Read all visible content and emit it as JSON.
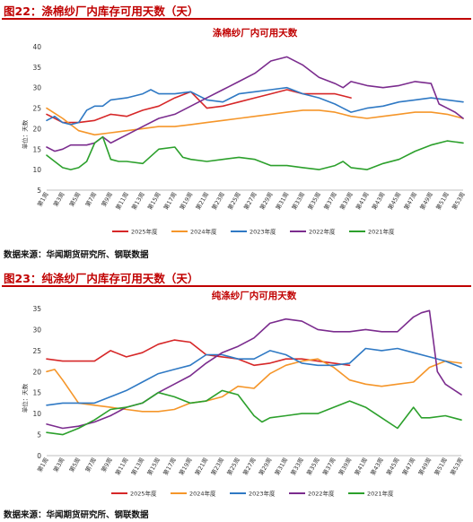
{
  "figures": [
    {
      "figure_label": "图22：涤棉纱厂内库存可用天数（天）",
      "source": "数据来源：华闻期货研究所、钢联数据"
    },
    {
      "figure_label": "图23：纯涤纱厂内库存可用天数（天）",
      "source": "数据来源：华闻期货研究所、钢联数据"
    }
  ],
  "colors": {
    "2025年度": "#d62728",
    "2024年度": "#f5962a",
    "2023年度": "#2f79c4",
    "2022年度": "#7b2c8e",
    "2021年度": "#2ca02c"
  },
  "chart_data": [
    {
      "type": "line",
      "title": "涤棉纱厂内可用天数",
      "ylabel": "单位：天数",
      "ylim": [
        5,
        40
      ],
      "yticks": [
        5,
        10,
        15,
        20,
        25,
        30,
        35,
        40
      ],
      "xticks": [
        "第1周",
        "第3周",
        "第5周",
        "第7周",
        "第9周",
        "第11周",
        "第13周",
        "第15周",
        "第17周",
        "第19周",
        "第21周",
        "第23周",
        "第25周",
        "第27周",
        "第29周",
        "第31周",
        "第33周",
        "第35周",
        "第37周",
        "第39周",
        "第41周",
        "第43周",
        "第45周",
        "第47周",
        "第49周",
        "第51周",
        "第53周"
      ],
      "legend_position": "bottom",
      "series": [
        {
          "name": "2025年度",
          "x": [
            1,
            3,
            5,
            7,
            9,
            11,
            13,
            15,
            17,
            19,
            21,
            23,
            25,
            27,
            29,
            31,
            33,
            35,
            37,
            39
          ],
          "values": [
            23.5,
            21.5,
            21.5,
            22.0,
            23.5,
            23.0,
            24.5,
            25.5,
            27.5,
            29.0,
            25.0,
            25.5,
            26.5,
            27.5,
            28.5,
            29.5,
            28.5,
            28.5,
            28.5,
            27.5
          ]
        },
        {
          "name": "2024年度",
          "x": [
            1,
            3,
            5,
            7,
            9,
            11,
            13,
            15,
            17,
            19,
            21,
            23,
            25,
            27,
            29,
            31,
            33,
            35,
            37,
            39,
            41,
            43,
            45,
            47,
            49,
            51,
            53
          ],
          "values": [
            25.0,
            22.5,
            19.5,
            18.5,
            19.0,
            19.5,
            20.0,
            20.5,
            20.5,
            21.0,
            21.5,
            22.0,
            22.5,
            23.0,
            23.5,
            24.0,
            24.5,
            24.5,
            24.0,
            23.0,
            22.5,
            23.0,
            23.5,
            24.0,
            24.0,
            23.5,
            22.5
          ]
        },
        {
          "name": "2023年度",
          "x": [
            1,
            2,
            3,
            4,
            5,
            6,
            7,
            8,
            9,
            11,
            13,
            14,
            15,
            17,
            19,
            21,
            23,
            25,
            27,
            29,
            31,
            33,
            35,
            37,
            39,
            40,
            41,
            43,
            45,
            47,
            49,
            51,
            53
          ],
          "values": [
            22.0,
            23.0,
            21.5,
            21.0,
            21.5,
            24.5,
            25.5,
            25.5,
            27.0,
            27.5,
            28.5,
            29.5,
            28.5,
            28.5,
            29.0,
            27.0,
            26.5,
            28.5,
            29.0,
            29.5,
            30.0,
            28.5,
            27.5,
            26.0,
            24.0,
            24.5,
            25.0,
            25.5,
            26.5,
            27.0,
            27.5,
            27.0,
            26.5
          ]
        },
        {
          "name": "2022年度",
          "x": [
            1,
            2,
            3,
            4,
            5,
            6,
            7,
            8,
            9,
            11,
            13,
            15,
            17,
            19,
            21,
            23,
            25,
            27,
            29,
            31,
            33,
            35,
            37,
            38,
            39,
            41,
            43,
            45,
            47,
            49,
            50,
            51,
            52,
            53
          ],
          "values": [
            15.5,
            14.5,
            15.0,
            16.0,
            16.0,
            16.0,
            16.5,
            18.0,
            16.5,
            18.5,
            20.5,
            22.5,
            23.5,
            25.5,
            27.5,
            29.5,
            31.5,
            33.5,
            36.5,
            37.5,
            35.5,
            32.5,
            31.0,
            30.0,
            31.5,
            30.5,
            30.0,
            30.5,
            31.5,
            31.0,
            26.0,
            25.0,
            24.0,
            22.5
          ]
        },
        {
          "name": "2021年度",
          "x": [
            1,
            2,
            3,
            4,
            5,
            6,
            7,
            8,
            9,
            10,
            11,
            13,
            15,
            17,
            18,
            19,
            21,
            23,
            25,
            27,
            29,
            31,
            33,
            35,
            37,
            38,
            39,
            41,
            43,
            45,
            47,
            49,
            51,
            53
          ],
          "values": [
            13.5,
            12.0,
            10.5,
            10.0,
            10.5,
            12.0,
            16.5,
            18.0,
            12.5,
            12.0,
            12.0,
            11.5,
            15.0,
            15.5,
            13.0,
            12.5,
            12.0,
            12.5,
            13.0,
            12.5,
            11.0,
            11.0,
            10.5,
            10.0,
            11.0,
            12.0,
            10.5,
            10.0,
            11.5,
            12.5,
            14.5,
            16.0,
            17.0,
            16.5
          ]
        }
      ]
    },
    {
      "type": "line",
      "title": "纯涤纱厂内可用天数",
      "ylabel": "单位：天数",
      "ylim": [
        0,
        35
      ],
      "yticks": [
        0,
        5,
        10,
        15,
        20,
        25,
        30,
        35
      ],
      "xticks": [
        "第1周",
        "第3周",
        "第5周",
        "第7周",
        "第9周",
        "第11周",
        "第13周",
        "第15周",
        "第17周",
        "第19周",
        "第21周",
        "第23周",
        "第25周",
        "第27周",
        "第29周",
        "第31周",
        "第33周",
        "第35周",
        "第37周",
        "第39周",
        "第41周",
        "第43周",
        "第45周",
        "第47周",
        "第49周",
        "第51周",
        "第53周"
      ],
      "legend_position": "bottom",
      "series": [
        {
          "name": "2025年度",
          "x": [
            1,
            3,
            5,
            7,
            9,
            11,
            13,
            15,
            17,
            19,
            21,
            23,
            25,
            27,
            29,
            31,
            33,
            35,
            37,
            39
          ],
          "values": [
            23.0,
            22.5,
            22.5,
            22.5,
            25.0,
            23.5,
            24.5,
            26.5,
            27.5,
            27.0,
            24.0,
            23.5,
            23.0,
            21.5,
            22.0,
            23.0,
            23.0,
            22.5,
            22.0,
            21.5
          ]
        },
        {
          "name": "2024年度",
          "x": [
            1,
            2,
            3,
            5,
            7,
            9,
            11,
            13,
            15,
            17,
            19,
            21,
            23,
            25,
            27,
            29,
            31,
            33,
            35,
            37,
            39,
            41,
            43,
            45,
            47,
            49,
            51,
            53
          ],
          "values": [
            20.0,
            20.5,
            18.0,
            12.5,
            12.0,
            11.5,
            11.0,
            10.5,
            10.5,
            11.0,
            12.5,
            13.0,
            14.0,
            16.5,
            16.0,
            19.5,
            21.5,
            22.5,
            23.0,
            21.0,
            18.0,
            17.0,
            16.5,
            17.0,
            17.5,
            21.0,
            22.5,
            22.0
          ]
        },
        {
          "name": "2023年度",
          "x": [
            1,
            3,
            5,
            7,
            9,
            11,
            13,
            15,
            17,
            19,
            21,
            23,
            25,
            27,
            29,
            31,
            33,
            35,
            37,
            39,
            41,
            43,
            45,
            47,
            49,
            51,
            53
          ],
          "values": [
            12.0,
            12.5,
            12.5,
            12.5,
            14.0,
            15.5,
            17.5,
            19.5,
            20.5,
            21.5,
            24.0,
            24.0,
            23.0,
            23.0,
            25.0,
            24.0,
            22.0,
            21.5,
            21.5,
            22.0,
            25.5,
            25.0,
            25.5,
            24.5,
            23.5,
            22.5,
            21.0
          ]
        },
        {
          "name": "2022年度",
          "x": [
            1,
            3,
            5,
            7,
            9,
            11,
            13,
            15,
            17,
            19,
            21,
            23,
            25,
            27,
            29,
            31,
            33,
            35,
            37,
            39,
            41,
            43,
            45,
            47,
            48,
            49,
            50,
            51,
            53
          ],
          "values": [
            7.5,
            6.5,
            7.0,
            8.0,
            9.5,
            11.5,
            12.5,
            15.0,
            17.0,
            19.0,
            22.0,
            24.5,
            26.0,
            28.0,
            31.5,
            32.5,
            32.0,
            30.0,
            29.5,
            29.5,
            30.0,
            29.5,
            29.5,
            33.0,
            34.0,
            34.5,
            20.0,
            17.0,
            14.5
          ]
        },
        {
          "name": "2021年度",
          "x": [
            1,
            3,
            5,
            7,
            9,
            11,
            13,
            15,
            17,
            19,
            21,
            23,
            25,
            27,
            28,
            29,
            31,
            33,
            35,
            37,
            39,
            41,
            43,
            45,
            47,
            48,
            49,
            51,
            53
          ],
          "values": [
            5.5,
            5.0,
            6.5,
            8.5,
            11.0,
            11.5,
            12.5,
            15.0,
            14.0,
            12.5,
            13.0,
            15.5,
            14.5,
            9.5,
            8.0,
            9.0,
            9.5,
            10.0,
            10.0,
            11.5,
            13.0,
            11.5,
            9.0,
            6.5,
            11.5,
            9.0,
            9.0,
            9.5,
            8.5
          ]
        }
      ]
    }
  ]
}
